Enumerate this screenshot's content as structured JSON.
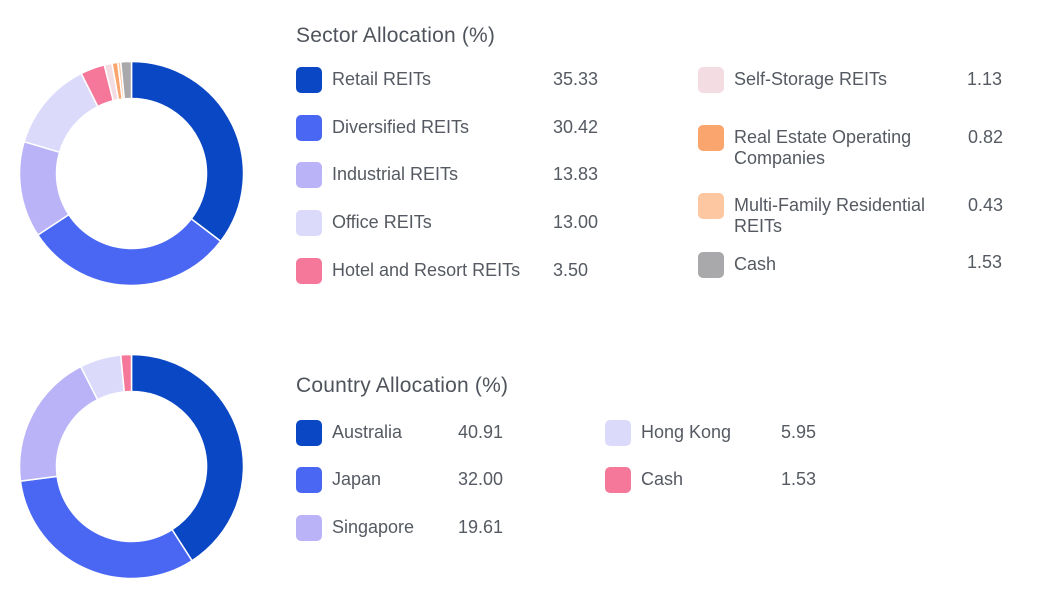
{
  "chart_data": [
    {
      "type": "pie",
      "title": "Sector Allocation (%)",
      "slices": [
        {
          "name": "Retail REITs",
          "value": 35.33,
          "display": "35.33",
          "color": "#0a47c4"
        },
        {
          "name": "Diversified REITs",
          "value": 30.42,
          "display": "30.42",
          "color": "#4a67f4"
        },
        {
          "name": "Industrial REITs",
          "value": 13.83,
          "display": "13.83",
          "color": "#bab3f7"
        },
        {
          "name": "Office REITs",
          "value": 13.0,
          "display": "13.00",
          "color": "#dcdafb"
        },
        {
          "name": "Hotel and Resort REITs",
          "value": 3.5,
          "display": "3.50",
          "color": "#f5789a"
        },
        {
          "name": "Self-Storage REITs",
          "value": 1.13,
          "display": "1.13",
          "color": "#f3dde3"
        },
        {
          "name": "Real Estate Operating Companies",
          "value": 0.82,
          "display": "0.82",
          "color": "#fba56e"
        },
        {
          "name": "Multi-Family Residential REITs",
          "value": 0.43,
          "display": "0.43",
          "color": "#fdc7a2"
        },
        {
          "name": "Cash",
          "value": 1.53,
          "display": "1.53",
          "color": "#a9a9ab"
        }
      ]
    },
    {
      "type": "pie",
      "title": "Country Allocation (%)",
      "slices": [
        {
          "name": "Australia",
          "value": 40.91,
          "display": "40.91",
          "color": "#0a47c4"
        },
        {
          "name": "Japan",
          "value": 32.0,
          "display": "32.00",
          "color": "#4a67f4"
        },
        {
          "name": "Singapore",
          "value": 19.61,
          "display": "19.61",
          "color": "#bab3f7"
        },
        {
          "name": "Hong Kong",
          "value": 5.95,
          "display": "5.95",
          "color": "#dcdafb"
        },
        {
          "name": "Cash",
          "value": 1.53,
          "display": "1.53",
          "color": "#f5789a"
        }
      ]
    }
  ]
}
